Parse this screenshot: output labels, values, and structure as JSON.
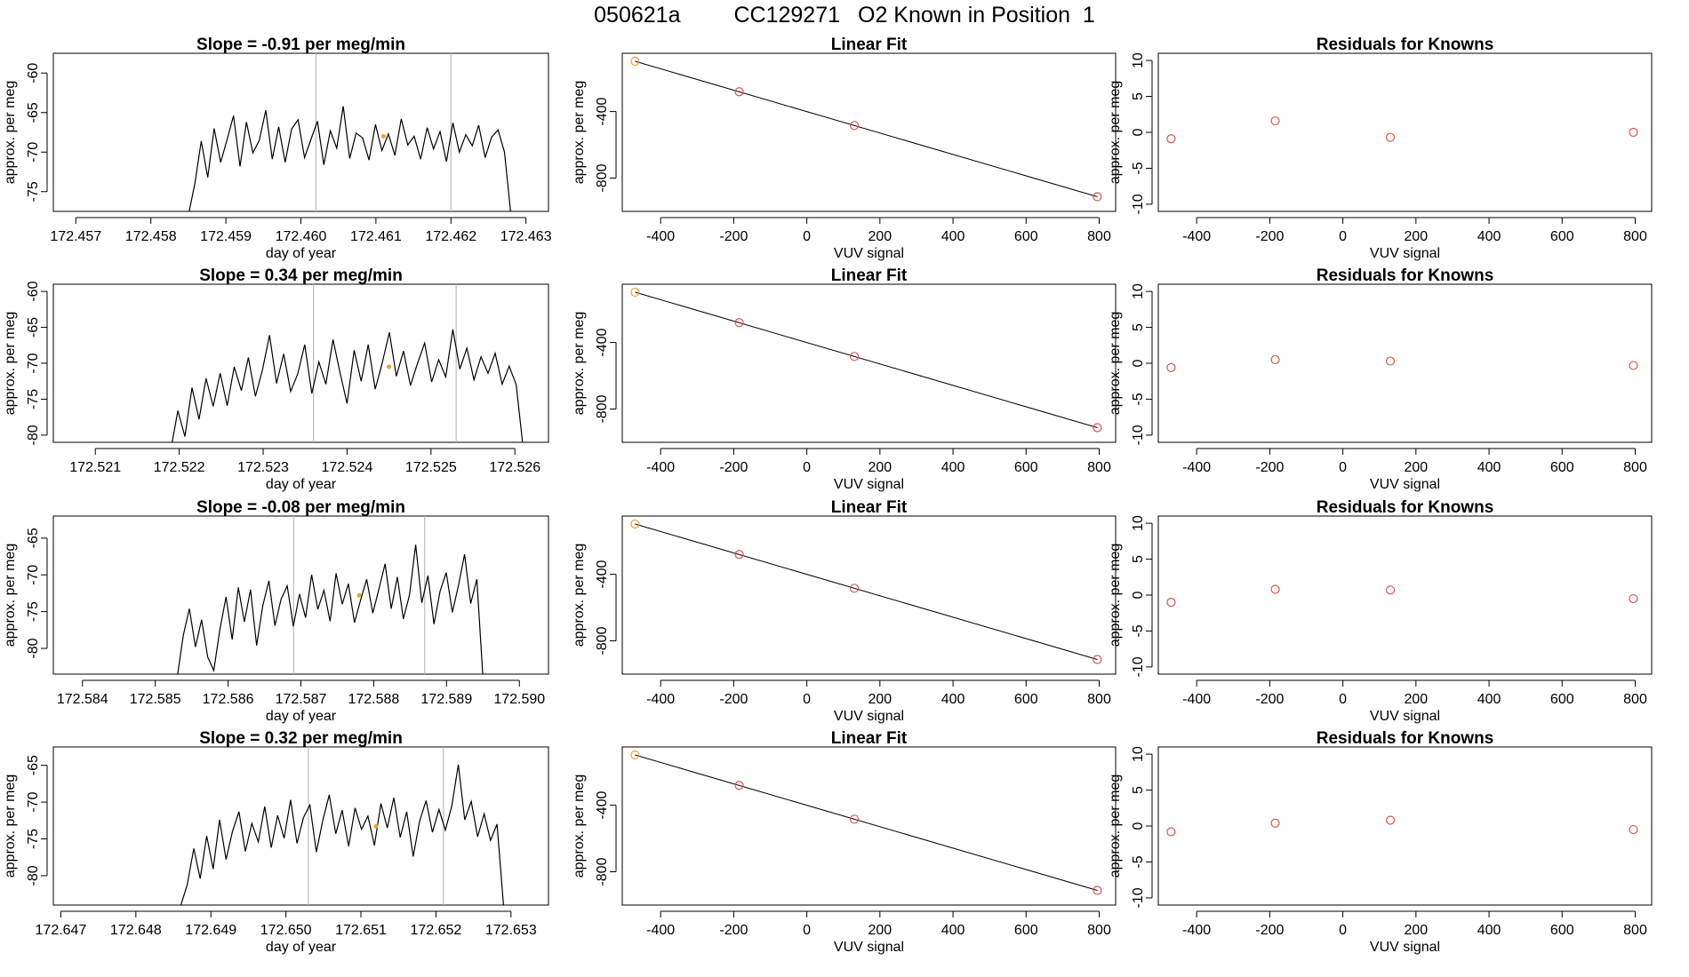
{
  "page_title": {
    "id": "050621a",
    "cylinder": "CC129271",
    "description": "O2 Known in Position  1"
  },
  "colors": {
    "line": "#000000",
    "point": "#d9534f",
    "marker": "#e8a33d",
    "vline": "#bbbbbb"
  },
  "chart_data": [
    {
      "type": "line",
      "panel": "timeseries",
      "row": 1,
      "title": "Slope =  -0.91  per meg/min",
      "xlabel": "day of year",
      "ylabel": "approx. per meg",
      "xlim": [
        172.4567,
        172.4633
      ],
      "ylim": [
        -77.5,
        -57.5
      ],
      "xticks": [
        "172.457",
        "172.458",
        "172.459",
        "172.460",
        "172.461",
        "172.462",
        "172.463"
      ],
      "yticks": [
        -60,
        -65,
        -70,
        -75
      ],
      "vlines": [
        172.4602,
        172.462
      ],
      "marker": {
        "x": 172.4611,
        "y": -68.0
      },
      "start_x": 172.4585,
      "end_x": 172.4628,
      "mean": -68.3,
      "amplitude": 3.5,
      "seed": 11,
      "values": [
        -78.0,
        -74.0,
        -68.6,
        -73.2,
        -67.0,
        -71.3,
        -68.4,
        -65.4,
        -71.8,
        -66.2,
        -70.1,
        -68.5,
        -64.7,
        -70.9,
        -66.8,
        -71.3,
        -67.1,
        -65.9,
        -70.7,
        -68.4,
        -66.1,
        -71.6,
        -67.3,
        -69.5,
        -64.2,
        -70.8,
        -67.6,
        -68.2,
        -71.0,
        -66.5,
        -69.8,
        -67.7,
        -70.4,
        -65.8,
        -69.1,
        -68.0,
        -70.9,
        -66.9,
        -69.6,
        -67.4,
        -71.2,
        -66.3,
        -70.0,
        -67.8,
        -69.2,
        -66.6,
        -70.7,
        -68.1,
        -67.2,
        -70.0,
        -78.0
      ]
    },
    {
      "type": "scatter",
      "panel": "linear_fit",
      "row": 1,
      "title": "Linear Fit",
      "xlabel": "VUV signal",
      "ylabel": "approx. per meg",
      "xlim": [
        -505,
        845
      ],
      "ylim": [
        -1000,
        -50
      ],
      "xticks": [
        -400,
        -200,
        0,
        200,
        400,
        600,
        800
      ],
      "yticks": [
        -400,
        -800
      ],
      "x": [
        -470,
        -185,
        130,
        795
      ],
      "y": [
        -98,
        -281,
        -484,
        -912
      ],
      "fit_line": [
        [
          -470,
          -98
        ],
        [
          795,
          -912
        ]
      ]
    },
    {
      "type": "scatter",
      "panel": "residuals",
      "row": 1,
      "title": "Residuals for Knowns",
      "xlabel": "VUV signal",
      "ylabel": "approx. per meg",
      "xlim": [
        -505,
        845
      ],
      "ylim": [
        -11,
        11
      ],
      "xticks": [
        -400,
        -200,
        0,
        200,
        400,
        600,
        800
      ],
      "yticks": [
        10,
        5,
        0,
        -5,
        -10
      ],
      "x": [
        -470,
        -185,
        130,
        795
      ],
      "y": [
        -0.9,
        1.6,
        -0.7,
        0.0
      ]
    },
    {
      "type": "line",
      "panel": "timeseries",
      "row": 2,
      "title": "Slope =  0.34  per meg/min",
      "xlabel": "day of year",
      "ylabel": "approx. per meg",
      "xlim": [
        172.5205,
        172.5264
      ],
      "ylim": [
        -81.0,
        -59.0
      ],
      "xticks": [
        "172.521",
        "172.522",
        "172.523",
        "172.524",
        "172.525",
        "172.526"
      ],
      "yticks": [
        -60,
        -65,
        -70,
        -75,
        -80
      ],
      "vlines": [
        172.5236,
        172.5253
      ],
      "marker": {
        "x": 172.5245,
        "y": -70.5
      },
      "start_x": 172.5219,
      "end_x": 172.5261,
      "values": [
        -82.0,
        -76.6,
        -80.2,
        -73.4,
        -77.8,
        -72.1,
        -76.0,
        -71.4,
        -75.9,
        -70.5,
        -73.8,
        -69.2,
        -74.6,
        -70.9,
        -66.1,
        -72.8,
        -68.7,
        -73.9,
        -71.5,
        -67.4,
        -74.2,
        -69.8,
        -72.9,
        -66.7,
        -71.3,
        -75.6,
        -68.2,
        -72.5,
        -67.4,
        -73.6,
        -69.9,
        -65.7,
        -71.8,
        -68.3,
        -73.1,
        -70.0,
        -67.2,
        -72.6,
        -69.5,
        -71.9,
        -65.3,
        -70.8,
        -67.9,
        -72.3,
        -69.1,
        -71.4,
        -68.6,
        -72.9,
        -70.4,
        -73.0,
        -82.0
      ]
    },
    {
      "type": "scatter",
      "panel": "linear_fit",
      "row": 2,
      "title": "Linear Fit",
      "xlabel": "VUV signal",
      "ylabel": "approx. per meg",
      "xlim": [
        -505,
        845
      ],
      "ylim": [
        -1000,
        -50
      ],
      "xticks": [
        -400,
        -200,
        0,
        200,
        400,
        600,
        800
      ],
      "yticks": [
        -400,
        -800
      ],
      "x": [
        -470,
        -185,
        130,
        795
      ],
      "y": [
        -98,
        -281,
        -484,
        -912
      ],
      "fit_line": [
        [
          -470,
          -98
        ],
        [
          795,
          -912
        ]
      ]
    },
    {
      "type": "scatter",
      "panel": "residuals",
      "row": 2,
      "title": "Residuals for Knowns",
      "xlabel": "VUV signal",
      "ylabel": "approx. per meg",
      "xlim": [
        -505,
        845
      ],
      "ylim": [
        -11,
        11
      ],
      "xticks": [
        -400,
        -200,
        0,
        200,
        400,
        600,
        800
      ],
      "yticks": [
        10,
        5,
        0,
        -5,
        -10
      ],
      "x": [
        -470,
        -185,
        130,
        795
      ],
      "y": [
        -0.6,
        0.5,
        0.3,
        -0.3
      ]
    },
    {
      "type": "line",
      "panel": "timeseries",
      "row": 3,
      "title": "Slope =  -0.08  per meg/min",
      "xlabel": "day of year",
      "ylabel": "approx. per meg",
      "xlim": [
        172.5836,
        172.5904
      ],
      "ylim": [
        -83.5,
        -62.0
      ],
      "xticks": [
        "172.584",
        "172.585",
        "172.586",
        "172.587",
        "172.588",
        "172.589",
        "172.590"
      ],
      "yticks": [
        -65,
        -70,
        -75,
        -80
      ],
      "vlines": [
        172.5869,
        172.5887
      ],
      "marker": {
        "x": 172.5878,
        "y": -72.8
      },
      "start_x": 172.5853,
      "end_x": 172.5895,
      "values": [
        -84.0,
        -78.3,
        -74.6,
        -79.8,
        -76.1,
        -81.2,
        -83.0,
        -77.4,
        -73.0,
        -78.8,
        -71.7,
        -76.4,
        -72.0,
        -79.6,
        -74.2,
        -70.8,
        -76.9,
        -73.3,
        -71.5,
        -77.0,
        -72.6,
        -75.8,
        -70.0,
        -74.7,
        -72.1,
        -76.3,
        -69.8,
        -74.0,
        -71.2,
        -76.5,
        -73.4,
        -70.6,
        -75.2,
        -71.9,
        -68.5,
        -74.6,
        -70.3,
        -76.0,
        -72.7,
        -65.9,
        -73.8,
        -70.1,
        -76.7,
        -72.2,
        -69.7,
        -75.1,
        -71.4,
        -67.2,
        -73.9,
        -70.6,
        -84.0
      ]
    },
    {
      "type": "scatter",
      "panel": "linear_fit",
      "row": 3,
      "title": "Linear Fit",
      "xlabel": "VUV signal",
      "ylabel": "approx. per meg",
      "xlim": [
        -505,
        845
      ],
      "ylim": [
        -1000,
        -50
      ],
      "xticks": [
        -400,
        -200,
        0,
        200,
        400,
        600,
        800
      ],
      "yticks": [
        -400,
        -800
      ],
      "x": [
        -470,
        -185,
        130,
        795
      ],
      "y": [
        -98,
        -281,
        -484,
        -912
      ],
      "fit_line": [
        [
          -470,
          -98
        ],
        [
          795,
          -912
        ]
      ]
    },
    {
      "type": "scatter",
      "panel": "residuals",
      "row": 3,
      "title": "Residuals for Knowns",
      "xlabel": "VUV signal",
      "ylabel": "approx. per meg",
      "xlim": [
        -505,
        845
      ],
      "ylim": [
        -11,
        11
      ],
      "xticks": [
        -400,
        -200,
        0,
        200,
        400,
        600,
        800
      ],
      "yticks": [
        10,
        5,
        0,
        -5,
        -10
      ],
      "x": [
        -470,
        -185,
        130,
        795
      ],
      "y": [
        -1.0,
        0.8,
        0.7,
        -0.5
      ]
    },
    {
      "type": "line",
      "panel": "timeseries",
      "row": 4,
      "title": "Slope =  0.32  per meg/min",
      "xlabel": "day of year",
      "ylabel": "approx. per meg",
      "xlim": [
        172.6469,
        172.6535
      ],
      "ylim": [
        -84.0,
        -62.5
      ],
      "xticks": [
        "172.647",
        "172.648",
        "172.649",
        "172.650",
        "172.651",
        "172.652",
        "172.653"
      ],
      "yticks": [
        -65,
        -70,
        -75,
        -80
      ],
      "vlines": [
        172.6503,
        172.6521
      ],
      "marker": {
        "x": 172.6512,
        "y": -73.3
      },
      "start_x": 172.6486,
      "end_x": 172.6529,
      "values": [
        -84.0,
        -81.2,
        -76.3,
        -80.4,
        -74.6,
        -79.1,
        -72.4,
        -77.8,
        -74.0,
        -71.3,
        -76.7,
        -72.9,
        -75.4,
        -70.6,
        -76.2,
        -71.8,
        -74.9,
        -69.7,
        -75.6,
        -72.1,
        -70.4,
        -76.8,
        -72.5,
        -69.0,
        -74.3,
        -71.1,
        -76.0,
        -70.8,
        -73.7,
        -71.9,
        -75.9,
        -70.2,
        -73.5,
        -69.4,
        -74.8,
        -71.3,
        -77.4,
        -72.6,
        -69.8,
        -74.1,
        -71.0,
        -73.8,
        -70.5,
        -64.9,
        -72.4,
        -69.9,
        -74.7,
        -71.6,
        -75.2,
        -73.0,
        -84.0
      ]
    },
    {
      "type": "scatter",
      "panel": "linear_fit",
      "row": 4,
      "title": "Linear Fit",
      "xlabel": "VUV signal",
      "ylabel": "approx. per meg",
      "xlim": [
        -505,
        845
      ],
      "ylim": [
        -1000,
        -50
      ],
      "xticks": [
        -400,
        -200,
        0,
        200,
        400,
        600,
        800
      ],
      "yticks": [
        -400,
        -800
      ],
      "x": [
        -470,
        -185,
        130,
        795
      ],
      "y": [
        -98,
        -281,
        -484,
        -912
      ],
      "fit_line": [
        [
          -470,
          -98
        ],
        [
          795,
          -912
        ]
      ]
    },
    {
      "type": "scatter",
      "panel": "residuals",
      "row": 4,
      "title": "Residuals for Knowns",
      "xlabel": "VUV signal",
      "ylabel": "approx. per meg",
      "xlim": [
        -505,
        845
      ],
      "ylim": [
        -11,
        11
      ],
      "xticks": [
        -400,
        -200,
        0,
        200,
        400,
        600,
        800
      ],
      "yticks": [
        10,
        5,
        0,
        -5,
        -10
      ],
      "x": [
        -470,
        -185,
        130,
        795
      ],
      "y": [
        -0.8,
        0.4,
        0.8,
        -0.5
      ]
    }
  ]
}
